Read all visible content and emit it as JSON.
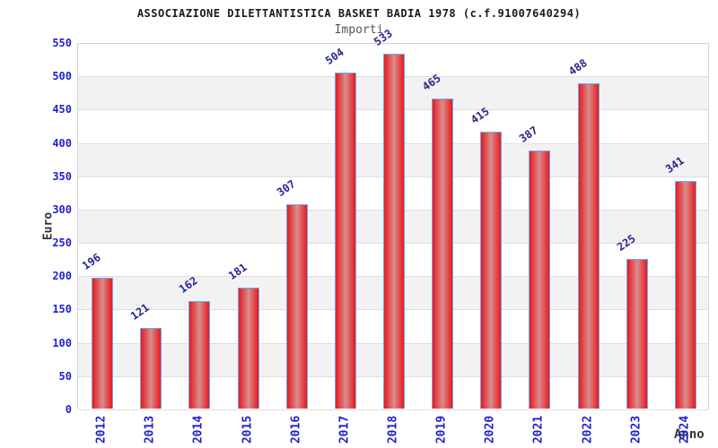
{
  "title": "ASSOCIAZIONE DILETTANTISTICA BASKET BADIA 1978 (c.f.91007640294)",
  "subtitle": "Importi",
  "chart_data": {
    "type": "bar",
    "categories": [
      "2012",
      "2013",
      "2014",
      "2015",
      "2016",
      "2017",
      "2018",
      "2019",
      "2020",
      "2021",
      "2022",
      "2023",
      "2024"
    ],
    "values": [
      196,
      121,
      162,
      181,
      307,
      504,
      533,
      465,
      415,
      387,
      488,
      225,
      341
    ],
    "title": "Importi",
    "xlabel": "Anno",
    "ylabel": "Euro",
    "ylim": [
      0,
      550
    ],
    "ytick_step": 50,
    "grid": "horizontal-bands-alternating",
    "legend": "none",
    "value_labels": "rotated above bars"
  },
  "colors": {
    "bar_fill": "#e8191e",
    "bar_fill_center": "#d98d8d",
    "bar_border": "#6babee",
    "axis_tick_text": "#1f1fcd",
    "value_label_text": "#26268f",
    "band_alt": "#f2f2f2",
    "gridline": "#dedede",
    "plot_border": "#d3d3d3",
    "subtitle_text": "#555555",
    "axis_title_text": "#333333"
  }
}
